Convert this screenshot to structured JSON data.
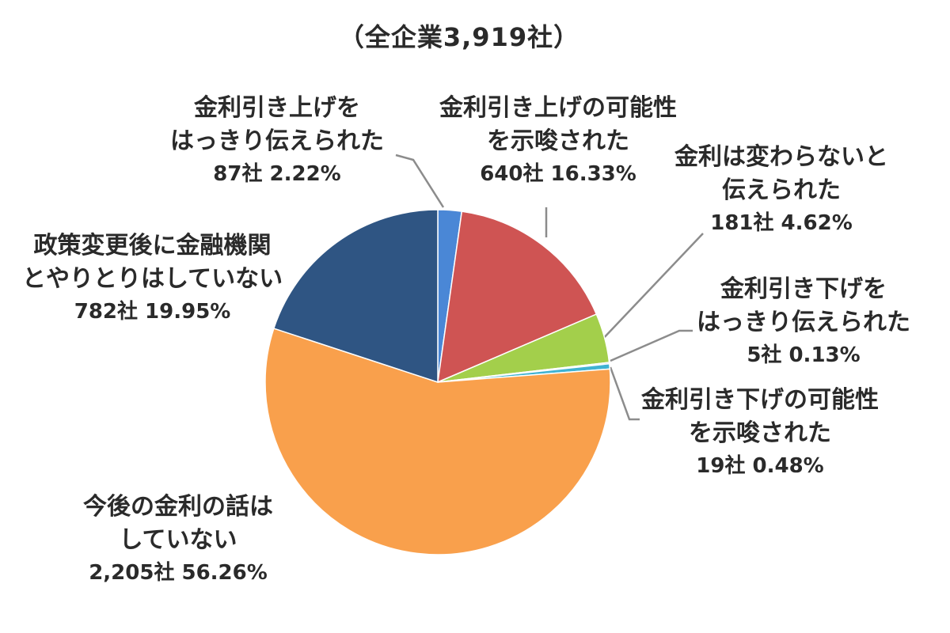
{
  "chart_data": {
    "type": "pie",
    "title": "（全企業3,919社）",
    "total": 3919,
    "slices": [
      {
        "lines": [
          "金利引き上げを",
          "はっきり伝えられた"
        ],
        "value_label": "87社 2.22%",
        "count": 87,
        "percent": 2.22,
        "color": "#4a87d6"
      },
      {
        "lines": [
          "金利引き上げの可能性",
          "を示唆された"
        ],
        "value_label": "640社 16.33%",
        "count": 640,
        "percent": 16.33,
        "color": "#cf5453"
      },
      {
        "lines": [
          "金利は変わらないと",
          "伝えられた"
        ],
        "value_label": "181社 4.62%",
        "count": 181,
        "percent": 4.62,
        "color": "#a3cf4b"
      },
      {
        "lines": [
          "金利引き下げを",
          "はっきり伝えられた"
        ],
        "value_label": "5社 0.13%",
        "count": 5,
        "percent": 0.13,
        "color": "#7e5fa8"
      },
      {
        "lines": [
          "金利引き下げの可能性",
          "を示唆された"
        ],
        "value_label": "19社 0.48%",
        "count": 19,
        "percent": 0.48,
        "color": "#3fb2d2"
      },
      {
        "lines": [
          "今後の金利の話は",
          "していない"
        ],
        "value_label": "2,205社 56.26%",
        "count": 2205,
        "percent": 56.26,
        "color": "#f9a04c"
      },
      {
        "lines": [
          "政策変更後に金融機関",
          "とやりとりはしていない"
        ],
        "value_label": "782社 19.95%",
        "count": 782,
        "percent": 19.95,
        "color": "#2f5583"
      }
    ]
  }
}
